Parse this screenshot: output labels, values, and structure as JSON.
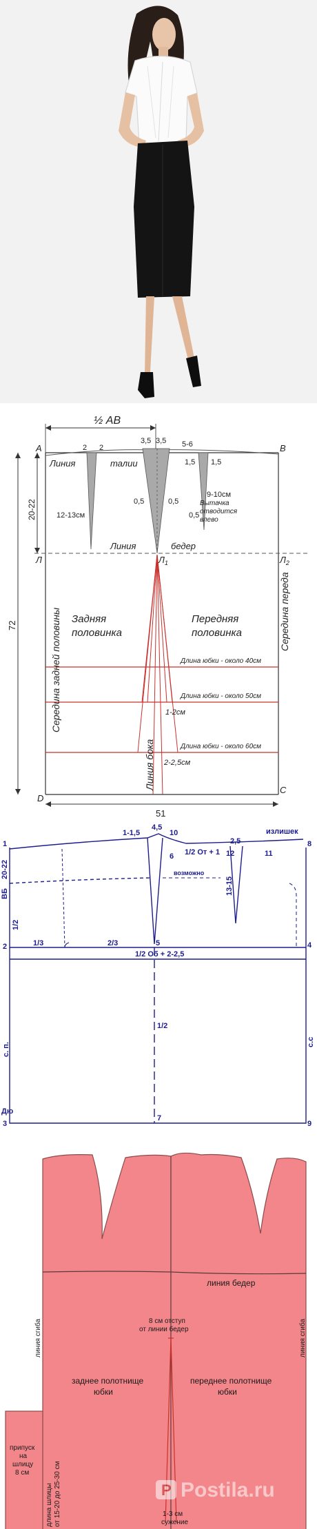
{
  "photo": {
    "description_shown": ""
  },
  "pattern1": {
    "half_ab": "½ АВ",
    "pt_a": "A",
    "pt_b": "B",
    "pt_l": "Л",
    "pt_l1": "Л",
    "pt_l1_sub": "1",
    "pt_l2": "Л",
    "pt_l2_sub": "2",
    "pt_d": "D",
    "pt_c": "C",
    "dart_2a": "2",
    "dart_2b": "2",
    "side_35a": "3,5",
    "side_35b": "3,5",
    "dart_56": "5-6",
    "dart_15a": "1,5",
    "dart_15b": "1,5",
    "waist_line_1": "Линия",
    "waist_line_2": "талии",
    "hip_line_1": "Линия",
    "hip_line_2": "бедер",
    "len_2022": "20-22",
    "len_72": "72",
    "dart_1213": "12-13см",
    "dart_910": "9-10см",
    "half_05a": "0,5",
    "half_05b": "0,5",
    "half_05c": "0,5",
    "dart_note_1": "Вытачка",
    "dart_note_2": "отводится",
    "dart_note_3": "влево",
    "back_1": "Задняя",
    "back_2": "половинка",
    "front_1": "Передняя",
    "front_2": "половинка",
    "back_mid": "Середина задней половины",
    "front_mid": "Середина переда",
    "side_line": "Линия бока",
    "len40": "Длина юбки - около 40см",
    "len50": "Длина юбки - около 50см",
    "len60": "Длина юбки - около 60см",
    "side_12": "1-2см",
    "side_225": "2-2,5см",
    "width_51": "51"
  },
  "pattern2": {
    "n1_15": "1-1,5",
    "n45": "4,5",
    "n10": "10",
    "n6": "6",
    "n25": "2,5",
    "excess": "излишек",
    "n8": "8",
    "n11": "11",
    "n12": "12",
    "n1": "1",
    "half_ot": "1/2 От + 1",
    "n2022": "20-22",
    "vb": "ВБ",
    "n1315": "13-15",
    "possible": "возможно",
    "half_a": "1/2",
    "n2": "2",
    "third": "1/3",
    "two_third": "2/3",
    "n5": "5",
    "n4": "4",
    "half_ob": "1/2 Об + 2-2,5",
    "half_b": "1/2",
    "sp": "с. п.",
    "ss": "с.с",
    "dyu": "Дю",
    "n3": "3",
    "n7": "7",
    "n9": "9"
  },
  "pattern3": {
    "hip_line": "линия бедер",
    "fold_left": "линия сгиба",
    "fold_right": "линия сгиба",
    "offset_1": "8 см отступ",
    "offset_2": "от линии бедер",
    "back_1": "заднее полотнище",
    "back_2": "юбки",
    "front_1": "переднее полотнище",
    "front_2": "юбки",
    "allow_1": "припуск",
    "allow_2": "на",
    "allow_3": "шлицу",
    "allow_4": "8 см",
    "slit_1": "длина шлицы",
    "slit_2": "от 15-20 до 25-30 см",
    "narrow_1": "1-3 см",
    "narrow_2": "сужение"
  },
  "watermark": {
    "brand": "Postila.ru"
  },
  "colors": {
    "pattern_red": "#c9302c",
    "pattern_navy": "#1c1c8c",
    "pink_fill": "#f3868a",
    "dart_grey": "#a9a9a9"
  }
}
